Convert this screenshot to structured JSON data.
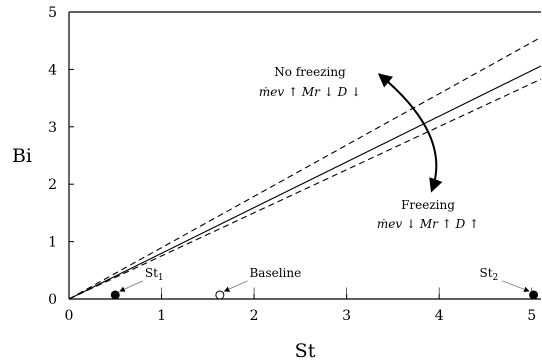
{
  "chart_data": {
    "type": "line",
    "xlabel": "St",
    "ylabel": "Bi",
    "xlim": [
      0,
      5.1
    ],
    "ylim": [
      0,
      5
    ],
    "xticks": [
      0,
      1,
      2,
      3,
      4,
      5
    ],
    "yticks": [
      0,
      1,
      2,
      3,
      4,
      5
    ],
    "xtick_labels": [
      "0",
      "1",
      "2",
      "3",
      "4",
      "5"
    ],
    "ytick_labels": [
      "0",
      "1",
      "2",
      "3",
      "4",
      "5"
    ],
    "grid": false,
    "series": [
      {
        "style": "solid",
        "x": [
          0,
          5.1
        ],
        "y": [
          0,
          4.06
        ]
      },
      {
        "style": "dashed",
        "x": [
          0,
          5.1
        ],
        "y": [
          0,
          4.56
        ]
      },
      {
        "style": "dashed",
        "x": [
          0,
          5.1
        ],
        "y": [
          0,
          3.83
        ]
      }
    ],
    "points": [
      {
        "x": 0.5,
        "y": 0.07,
        "filled": true,
        "label": "St",
        "subscript": "1",
        "label_x": 0.82,
        "label_y": 0.35
      },
      {
        "x": 1.63,
        "y": 0.07,
        "filled": false,
        "label": "Baseline",
        "label_x": 1.95,
        "label_y": 0.35
      },
      {
        "x": 5.02,
        "y": 0.07,
        "filled": true,
        "label": "St",
        "subscript": "2",
        "label_x": 4.66,
        "label_y": 0.35
      }
    ],
    "annotations": {
      "no_freezing": {
        "title": "No freezing",
        "line2": "ṁev ↑  Mr ↓  D ↓"
      },
      "freezing": {
        "title": "Freezing",
        "line2": "ṁev ↓  Mr ↑  D ↑"
      }
    }
  }
}
